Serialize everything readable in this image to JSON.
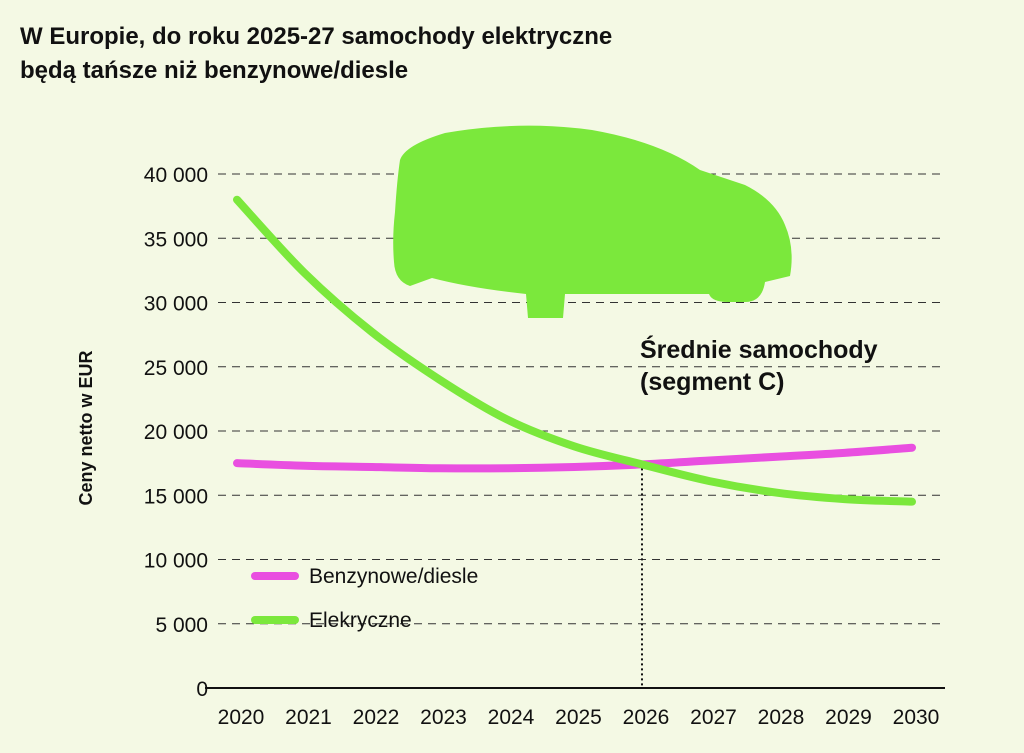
{
  "chart_data": {
    "type": "line",
    "title_lines": [
      "W Europie, do roku 2025-27 samochody elektryczne",
      "będą tańsze niż benzynowe/diesle"
    ],
    "ylabel": "Ceny netto w EUR",
    "xlabel": "",
    "x": [
      2020,
      2021,
      2022,
      2023,
      2024,
      2025,
      2026,
      2027,
      2028,
      2029,
      2030
    ],
    "x_tick_labels": [
      "2020",
      "2021",
      "2022",
      "2023",
      "2024",
      "2025",
      "2026",
      "2027",
      "2028",
      "2029",
      "2030"
    ],
    "y_ticks": [
      0,
      5000,
      10000,
      15000,
      20000,
      25000,
      30000,
      35000,
      40000
    ],
    "y_tick_labels": [
      "0",
      "5 000",
      "10 000",
      "15 000",
      "20 000",
      "25 000",
      "30 000",
      "35 000",
      "40 000"
    ],
    "ylim": [
      0,
      40000
    ],
    "grid": "horizontal dashed",
    "series": [
      {
        "name": "Benzynowe/diesle",
        "color": "#e94fe0",
        "values": [
          17500,
          17300,
          17200,
          17100,
          17100,
          17200,
          17400,
          17700,
          18000,
          18300,
          18700
        ]
      },
      {
        "name": "Elekryczne",
        "color": "#7be83c",
        "values": [
          38000,
          32300,
          27700,
          24000,
          20900,
          18800,
          17400,
          16100,
          15200,
          14700,
          14500
        ]
      }
    ],
    "annotation": {
      "lines": [
        "Średnie samochody",
        "(segment C)"
      ],
      "marker_x": 2026
    },
    "legend_placement": "bottom-left",
    "car_illustration_color": "#7be83c"
  }
}
